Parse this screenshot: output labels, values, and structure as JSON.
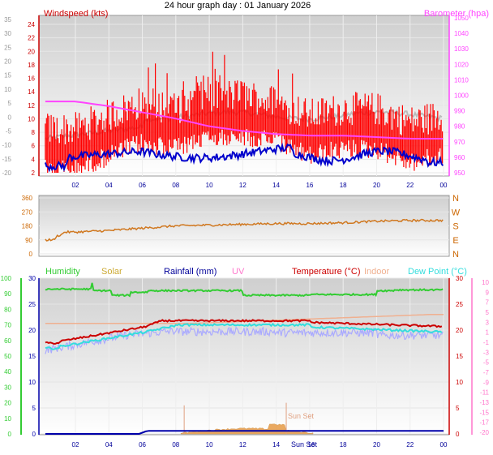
{
  "title": "24 hour graph day : 01 January 2026",
  "top_panel": {
    "windspeed_label": "Windspeed (kts)",
    "barometer_label": "Barometer (hpa)",
    "outer_left_ticks": [
      "35",
      "30",
      "25",
      "20",
      "15",
      "10",
      "5",
      "0",
      "-5",
      "-10",
      "-15",
      "-20"
    ],
    "inner_left_ticks": [
      "24",
      "22",
      "20",
      "18",
      "16",
      "14",
      "12",
      "10",
      "8",
      "6",
      "4",
      "2"
    ],
    "right_ticks": [
      "1050",
      "1040",
      "1030",
      "1020",
      "1010",
      "1000",
      "990",
      "980",
      "970",
      "960",
      "950"
    ],
    "x_ticks": [
      "02",
      "04",
      "06",
      "08",
      "10",
      "12",
      "14",
      "16",
      "18",
      "20",
      "22",
      "00"
    ]
  },
  "mid_panel": {
    "left_ticks": [
      "360",
      "270",
      "180",
      "90",
      "0"
    ],
    "right_labels": [
      "N",
      "W",
      "S",
      "E",
      "N"
    ]
  },
  "bottom_panel": {
    "legend": {
      "humidity": "Humidity",
      "solar": "Solar",
      "rainfall": "Rainfall (mm)",
      "uv": "UV",
      "temperature": "Temperature (°C)",
      "indoor": "Indoor",
      "dewpoint": "Dew Point (°C)"
    },
    "humidity_ticks": [
      "100",
      "90",
      "80",
      "70",
      "60",
      "50",
      "40",
      "30",
      "20",
      "10",
      "0"
    ],
    "rain_ticks": [
      "30",
      "25",
      "20",
      "15",
      "10",
      "5",
      "0"
    ],
    "temp_ticks": [
      "30",
      "25",
      "20",
      "15",
      "10",
      "5",
      "0"
    ],
    "uv_ticks": [
      "10",
      "9",
      "7",
      "5",
      "3",
      "1",
      "-1",
      "-3",
      "-5",
      "-7",
      "-9",
      "-11",
      "-13",
      "-15",
      "-17",
      "-20"
    ],
    "x_ticks": [
      "02",
      "04",
      "06",
      "08",
      "10",
      "12",
      "14",
      "16",
      "18",
      "20",
      "22",
      "00"
    ],
    "sunset_label": "Sun Set",
    "sunset_axis_label": "Sun Set"
  },
  "colors": {
    "windspeed": "#ff0000",
    "gust": "#ff3030",
    "barometer": "#ff44ff",
    "grey_line": "#bbbbbb",
    "blue_line": "#0000cc",
    "direction": "#d07820",
    "humidity": "#33cc33",
    "solar": "#ccaa33",
    "rainfall": "#0000aa",
    "uv": "#ff77cc",
    "temperature": "#cc0000",
    "indoor": "#f0b090",
    "dewpoint": "#33dddd",
    "lavender": "#aaaaff"
  },
  "chart_data": [
    {
      "type": "line",
      "title": "24 hour graph day : 01 January 2026",
      "x": [
        "02",
        "04",
        "06",
        "08",
        "10",
        "12",
        "14",
        "16",
        "18",
        "20",
        "22",
        "00"
      ],
      "series": [
        {
          "name": "Windspeed (kts)",
          "values": [
            5,
            7,
            9,
            8,
            10,
            10,
            9,
            7,
            8,
            8,
            6,
            7
          ]
        },
        {
          "name": "Barometer (hpa)",
          "values": [
            996,
            993,
            989,
            985,
            980,
            977,
            975,
            974,
            974,
            973,
            972,
            972
          ]
        }
      ],
      "ylim": [
        1,
        25
      ]
    },
    {
      "type": "line",
      "series": [
        {
          "values": [
            140,
            150,
            165,
            180,
            185,
            190,
            195,
            195,
            200,
            210,
            215,
            215
          ]
        }
      ],
      "ylim": [
        0,
        360
      ]
    },
    {
      "type": "line",
      "x": [
        "02",
        "04",
        "06",
        "08",
        "10",
        "12",
        "14",
        "16",
        "18",
        "20",
        "22",
        "00"
      ],
      "series": [
        {
          "name": "Humidity",
          "values": [
            93,
            92,
            88,
            92,
            91,
            90,
            88,
            89,
            89,
            88,
            92,
            92
          ]
        },
        {
          "name": "Temperature (°C)",
          "values": [
            -2,
            0,
            1,
            2,
            2,
            2,
            2,
            2,
            1.5,
            1,
            0.5,
            0.5
          ]
        },
        {
          "name": "Dew Point (°C)",
          "values": [
            -3,
            -1,
            0.5,
            1,
            1,
            1,
            1,
            1,
            0.5,
            0,
            -0.5,
            -0.5
          ]
        },
        {
          "name": "Indoor",
          "values": [
            1,
            1,
            1,
            1,
            2,
            2,
            3,
            3,
            3,
            3,
            3,
            3
          ]
        },
        {
          "name": "Rainfall (mm)",
          "values": [
            0,
            0,
            0.3,
            0.5,
            0.5,
            0.5,
            0.5,
            0.5,
            0.5,
            0.5,
            0.5,
            0.5
          ]
        }
      ]
    }
  ]
}
